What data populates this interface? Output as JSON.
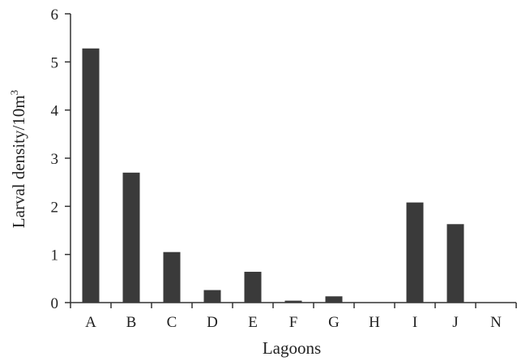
{
  "chart_data": {
    "type": "bar",
    "categories": [
      "A",
      "B",
      "C",
      "D",
      "E",
      "F",
      "G",
      "H",
      "I",
      "J",
      "N"
    ],
    "values": [
      5.28,
      2.7,
      1.05,
      0.26,
      0.64,
      0.04,
      0.13,
      0.0,
      2.08,
      1.63,
      0.0
    ],
    "xlabel": "Lagoons",
    "ylabel": "Larval density/10m",
    "ylabel_superscript": "3",
    "ylim": [
      0,
      6
    ],
    "yticks": [
      "0",
      "1",
      "2",
      "3",
      "4",
      "5",
      "6"
    ],
    "grid": false,
    "legend": "none",
    "bar_color": "#3a3a3a",
    "axis_color": "#333333"
  }
}
